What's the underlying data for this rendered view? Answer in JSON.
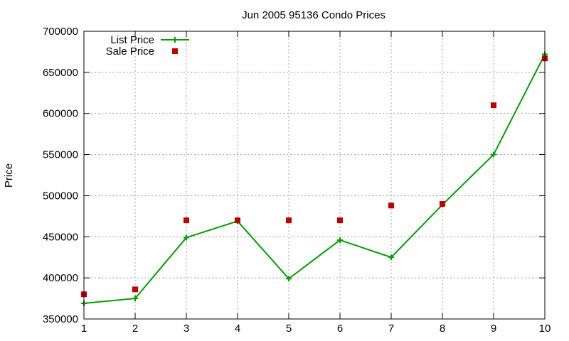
{
  "chart_data": {
    "type": "line",
    "title": "Jun 2005 95136 Condo Prices",
    "ylabel": "Price",
    "xlabel": "",
    "x": [
      1,
      2,
      3,
      4,
      5,
      6,
      7,
      8,
      9,
      10
    ],
    "xlim": [
      1,
      10
    ],
    "ylim": [
      350000,
      700000
    ],
    "yticks": [
      350000,
      400000,
      450000,
      500000,
      550000,
      600000,
      650000,
      700000
    ],
    "xticks": [
      1,
      2,
      3,
      4,
      5,
      6,
      7,
      8,
      9,
      10
    ],
    "grid": true,
    "legend_position": "top-left",
    "series": [
      {
        "name": "List Price",
        "style": "line-with-plus-markers",
        "color": "#00a000",
        "values": [
          369000,
          375000,
          449000,
          469000,
          399000,
          446000,
          425000,
          489000,
          550000,
          672000
        ]
      },
      {
        "name": "Sale Price",
        "style": "square-markers",
        "color": "#c00000",
        "values": [
          380000,
          386000,
          470000,
          470000,
          470000,
          470000,
          488000,
          490000,
          610000,
          667000
        ]
      }
    ]
  }
}
